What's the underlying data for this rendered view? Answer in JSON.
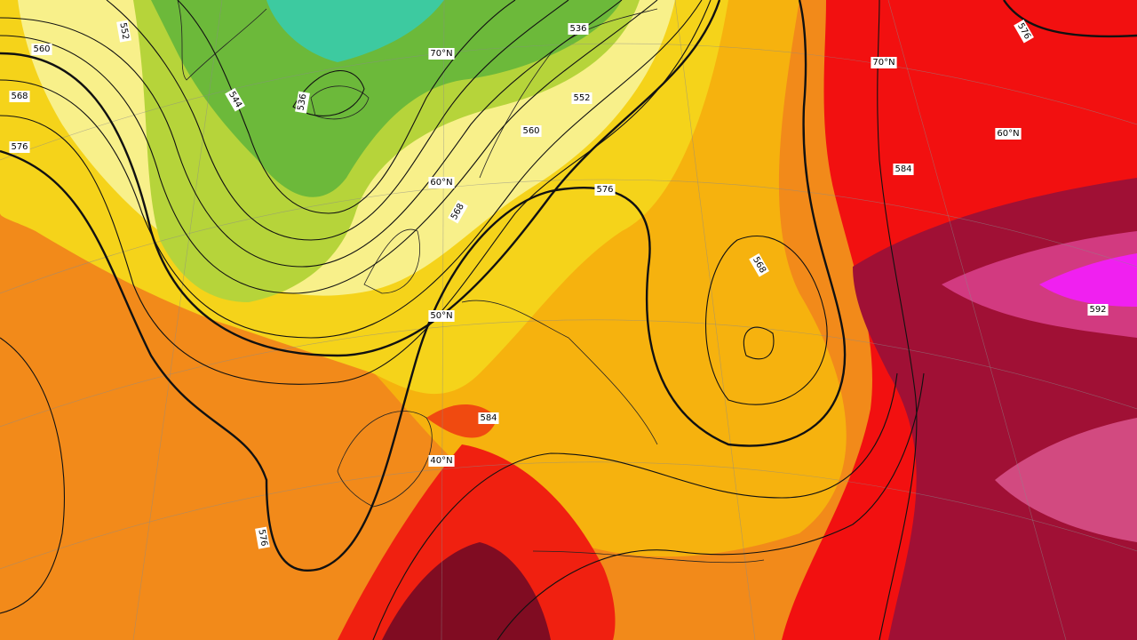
{
  "contour_labels": [
    "560",
    "552",
    "544",
    "536",
    "568",
    "576",
    "536",
    "552",
    "560",
    "568",
    "576",
    "584",
    "568",
    "584",
    "576",
    "592",
    "576"
  ],
  "latitude_labels": [
    "70°N",
    "60°N",
    "50°N",
    "40°N",
    "70°N",
    "60°N"
  ]
}
